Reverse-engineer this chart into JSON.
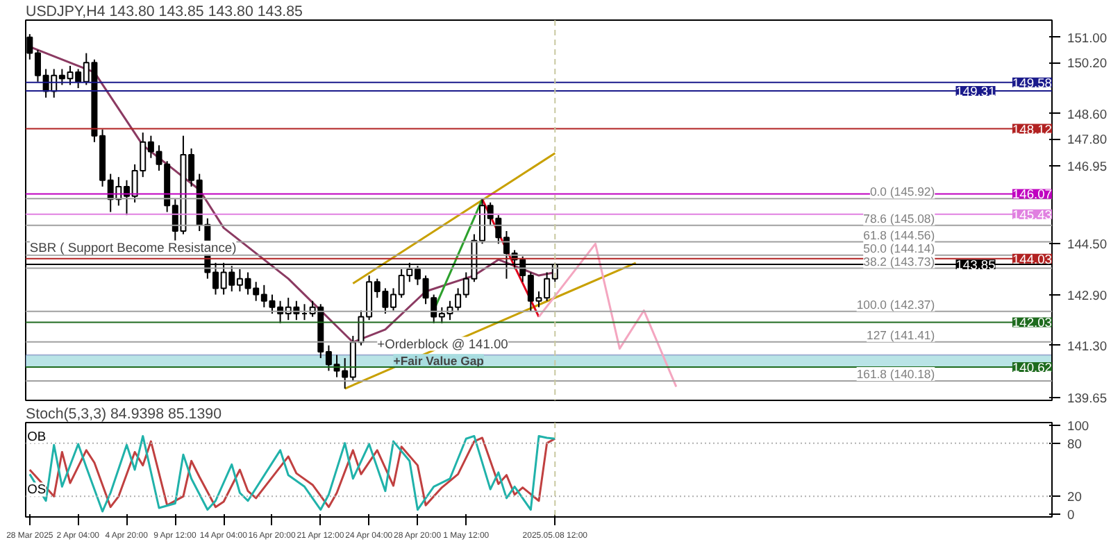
{
  "chart_data": [
    {
      "type": "candlestick",
      "title": "USDJPY,H4  143.80 143.85 143.80 143.85",
      "tick_labels": "y",
      "categories": [
        "28 Mar 2025",
        null,
        null,
        null,
        null,
        null,
        "2 Apr 04:00",
        null,
        null,
        null,
        null,
        null,
        "4 Apr 20:00",
        null,
        null,
        null,
        null,
        null,
        "9 Apr 12:00",
        null,
        null,
        null,
        null,
        null,
        "14 Apr 04:00",
        null,
        null,
        null,
        null,
        null,
        "16 Apr 20:00",
        null,
        null,
        null,
        null,
        null,
        "21 Apr 12:00",
        null,
        null,
        null,
        null,
        null,
        "24 Apr 04:00",
        null,
        null,
        null,
        null,
        null,
        "28 Apr 20:00",
        null,
        null,
        null,
        null,
        null,
        "1 May 12:00",
        null,
        null,
        null,
        null,
        null,
        null,
        null,
        null,
        null,
        null,
        "2025.05.08 12:00",
        null,
        null,
        null,
        null,
        null,
        null,
        null,
        null,
        null,
        null,
        null,
        null,
        null,
        null,
        null,
        null,
        null,
        null,
        null,
        null,
        null,
        null,
        null,
        null,
        null,
        null,
        null,
        null,
        null,
        null,
        null,
        null,
        null,
        null,
        null,
        null,
        null,
        null,
        null,
        null,
        null,
        null,
        null,
        null,
        null,
        null,
        null,
        null,
        null,
        null,
        null,
        null,
        null,
        null,
        null,
        null,
        null,
        null,
        null,
        null,
        null
      ],
      "ohlc": [
        [
          151.0,
          151.1,
          150.3,
          150.5
        ],
        [
          150.5,
          150.6,
          149.6,
          149.8
        ],
        [
          149.8,
          150.0,
          149.1,
          149.3
        ],
        [
          149.3,
          150.0,
          149.1,
          149.8
        ],
        [
          149.8,
          150.0,
          149.5,
          149.7
        ],
        [
          149.7,
          150.1,
          149.5,
          149.9
        ],
        [
          149.9,
          150.0,
          149.4,
          149.6
        ],
        [
          149.6,
          150.5,
          149.5,
          150.2
        ],
        [
          150.2,
          150.3,
          147.7,
          147.9
        ],
        [
          147.9,
          148.1,
          146.3,
          146.5
        ],
        [
          146.5,
          146.7,
          145.5,
          145.9
        ],
        [
          145.9,
          146.6,
          145.7,
          146.3
        ],
        [
          146.3,
          146.5,
          145.4,
          146.0
        ],
        [
          146.0,
          147.0,
          145.8,
          146.8
        ],
        [
          146.8,
          148.0,
          146.6,
          147.7
        ],
        [
          147.7,
          147.9,
          147.2,
          147.4
        ],
        [
          147.4,
          147.6,
          146.8,
          147.0
        ],
        [
          147.0,
          147.1,
          145.5,
          145.7
        ],
        [
          145.7,
          145.9,
          144.6,
          144.9
        ],
        [
          144.9,
          147.9,
          144.8,
          147.3
        ],
        [
          147.3,
          147.5,
          146.3,
          146.5
        ],
        [
          146.5,
          146.7,
          144.9,
          145.1
        ],
        [
          145.1,
          145.3,
          143.4,
          143.6
        ],
        [
          143.6,
          143.9,
          142.9,
          143.1
        ],
        [
          143.1,
          143.9,
          142.9,
          143.6
        ],
        [
          143.6,
          143.8,
          143.0,
          143.2
        ],
        [
          143.2,
          143.7,
          143.0,
          143.4
        ],
        [
          143.4,
          143.6,
          142.9,
          143.1
        ],
        [
          143.1,
          143.3,
          142.7,
          142.9
        ],
        [
          142.9,
          143.2,
          142.5,
          142.7
        ],
        [
          142.7,
          142.9,
          142.3,
          142.5
        ],
        [
          142.5,
          142.7,
          142.0,
          142.3
        ],
        [
          142.3,
          142.8,
          142.1,
          142.5
        ],
        [
          142.5,
          142.7,
          142.1,
          142.3
        ],
        [
          142.3,
          142.6,
          142.1,
          142.3
        ],
        [
          142.3,
          142.7,
          142.2,
          142.5
        ],
        [
          142.5,
          142.6,
          140.9,
          141.1
        ],
        [
          141.1,
          141.3,
          140.5,
          140.7
        ],
        [
          140.7,
          141.0,
          140.3,
          140.5
        ],
        [
          140.5,
          140.9,
          139.94,
          140.3
        ],
        [
          140.3,
          141.6,
          140.2,
          141.4
        ],
        [
          141.4,
          142.4,
          141.3,
          142.2
        ],
        [
          142.2,
          143.5,
          142.1,
          143.3
        ],
        [
          143.3,
          143.4,
          142.8,
          143.0
        ],
        [
          143.0,
          143.1,
          142.3,
          142.5
        ],
        [
          142.5,
          143.1,
          142.4,
          142.9
        ],
        [
          142.9,
          143.7,
          142.8,
          143.5
        ],
        [
          143.5,
          143.9,
          143.3,
          143.7
        ],
        [
          143.7,
          143.8,
          143.2,
          143.4
        ],
        [
          143.4,
          143.5,
          142.6,
          142.8
        ],
        [
          142.8,
          142.9,
          142.0,
          142.2
        ],
        [
          142.2,
          142.5,
          142.0,
          142.3
        ],
        [
          142.3,
          142.7,
          142.1,
          142.5
        ],
        [
          142.5,
          143.1,
          142.4,
          142.9
        ],
        [
          142.9,
          143.6,
          142.8,
          143.4
        ],
        [
          143.4,
          144.8,
          143.3,
          144.6
        ],
        [
          144.6,
          145.92,
          144.5,
          145.7
        ],
        [
          145.7,
          145.8,
          145.1,
          145.3
        ],
        [
          145.3,
          145.4,
          144.5,
          144.7
        ],
        [
          144.7,
          144.9,
          143.4,
          144.2
        ],
        [
          144.2,
          144.3,
          143.7,
          144.0
        ],
        [
          144.0,
          144.1,
          143.3,
          143.5
        ],
        [
          143.5,
          143.6,
          142.37,
          142.7
        ],
        [
          142.7,
          143.0,
          142.5,
          142.8
        ],
        [
          142.8,
          143.6,
          142.7,
          143.4
        ],
        [
          143.4,
          143.9,
          143.3,
          143.85
        ],
        null,
        null,
        null,
        null,
        null,
        null,
        null,
        null,
        null,
        null,
        null,
        null,
        null,
        null,
        null,
        null,
        null,
        null,
        null,
        null,
        null,
        null,
        null,
        null,
        null,
        null,
        null,
        null,
        null,
        null,
        null,
        null,
        null,
        null,
        null,
        null,
        null,
        null,
        null,
        null,
        null,
        null,
        null,
        null,
        null,
        null,
        null,
        null,
        null,
        null,
        null,
        null,
        null,
        null,
        null,
        null,
        null,
        null,
        null,
        null,
        null
      ],
      "series": [
        {
          "type": "line",
          "color": "#8b3a62",
          "values": [
            150.7,
            null,
            null,
            null,
            null,
            null,
            null,
            null,
            149.9,
            null,
            null,
            null,
            null,
            null,
            147.6,
            null,
            null,
            null,
            null,
            null,
            null,
            146.2,
            null,
            null,
            145.0,
            null,
            null,
            null,
            null,
            null,
            null,
            null,
            143.4,
            null,
            null,
            null,
            null,
            null,
            null,
            null,
            141.4,
            null,
            null,
            null,
            141.8,
            null,
            null,
            null,
            null,
            143.0,
            null,
            null,
            null,
            null,
            null,
            143.5,
            null,
            null,
            144.0,
            null,
            null,
            null,
            null,
            143.5,
            null,
            143.6,
            null,
            null,
            null,
            null,
            null,
            null,
            null,
            null,
            null,
            null,
            null,
            null,
            null,
            null,
            null,
            null,
            null,
            null,
            null,
            null,
            null,
            null,
            null,
            null,
            null,
            null,
            null,
            null,
            null,
            null,
            null,
            null,
            null,
            null,
            null,
            null,
            null,
            null,
            null,
            null,
            null,
            null,
            null,
            null,
            null,
            null,
            null,
            null,
            null,
            null,
            null,
            null,
            null,
            null,
            null,
            null,
            null,
            null,
            null,
            null,
            null
          ]
        },
        {
          "type": "line",
          "color": "#c8a000",
          "values": [
            null,
            null,
            null,
            null,
            null,
            null,
            null,
            null,
            null,
            null,
            null,
            null,
            null,
            null,
            null,
            null,
            null,
            null,
            null,
            null,
            null,
            null,
            null,
            null,
            null,
            null,
            null,
            null,
            null,
            null,
            null,
            null,
            null,
            null,
            null,
            null,
            null,
            null,
            null,
            139.94,
            null,
            null,
            null,
            null,
            null,
            null,
            null,
            null,
            null,
            null,
            null,
            null,
            null,
            null,
            null,
            null,
            null,
            null,
            null,
            null,
            null,
            null,
            null,
            null,
            null,
            null,
            null,
            null,
            null,
            null,
            null,
            null,
            null,
            null,
            null,
            143.9,
            null,
            null,
            null,
            null,
            null,
            null,
            null,
            null,
            null,
            null,
            null,
            null,
            null,
            null,
            null,
            null,
            null,
            null,
            null,
            null,
            null,
            null,
            null,
            null,
            null,
            null,
            null,
            null,
            null,
            null,
            null,
            null,
            null,
            null,
            null,
            null,
            null,
            null,
            null,
            null,
            null,
            null,
            null,
            null,
            null,
            null,
            null,
            null,
            null,
            null,
            null
          ]
        },
        {
          "type": "line",
          "color": "#c8a000",
          "values": [
            null,
            null,
            null,
            null,
            null,
            null,
            null,
            null,
            null,
            null,
            null,
            null,
            null,
            null,
            null,
            null,
            null,
            null,
            null,
            null,
            null,
            null,
            null,
            null,
            null,
            null,
            null,
            null,
            null,
            null,
            null,
            null,
            null,
            null,
            null,
            null,
            null,
            null,
            null,
            null,
            143.25,
            null,
            null,
            null,
            null,
            null,
            null,
            null,
            null,
            null,
            null,
            null,
            null,
            null,
            null,
            null,
            null,
            null,
            null,
            null,
            null,
            null,
            null,
            null,
            null,
            147.35,
            null,
            null,
            null,
            null,
            null,
            null,
            null,
            null,
            null,
            null,
            null,
            null,
            null,
            null,
            null,
            null,
            null,
            null,
            null,
            null,
            null,
            null,
            null,
            null,
            null,
            null,
            null,
            null,
            null,
            null,
            null,
            null,
            null,
            null,
            null,
            null,
            null,
            null,
            null,
            null,
            null,
            null,
            null,
            null,
            null,
            null,
            null,
            null,
            null,
            null,
            null,
            null,
            null,
            null,
            null,
            null,
            null,
            null,
            null,
            null,
            null
          ]
        },
        {
          "type": "line",
          "color": "#2ca02c",
          "values": [
            null,
            null,
            null,
            null,
            null,
            null,
            null,
            null,
            null,
            null,
            null,
            null,
            null,
            null,
            null,
            null,
            null,
            null,
            null,
            null,
            null,
            null,
            null,
            null,
            null,
            null,
            null,
            null,
            null,
            null,
            null,
            null,
            null,
            null,
            null,
            null,
            null,
            null,
            null,
            null,
            null,
            null,
            null,
            null,
            null,
            null,
            null,
            null,
            null,
            null,
            142.4,
            null,
            null,
            null,
            null,
            null,
            145.9,
            null,
            null,
            null,
            null,
            null,
            null,
            null,
            null,
            null,
            null,
            null,
            null,
            null,
            null,
            null,
            null,
            null,
            null,
            null,
            null,
            null,
            null,
            null,
            null,
            null,
            null,
            null,
            null,
            null,
            null,
            null,
            null,
            null,
            null,
            null,
            null,
            null,
            null,
            null,
            null,
            null,
            null,
            null,
            null,
            null,
            null,
            null,
            null,
            null,
            null,
            null,
            null,
            null,
            null,
            null,
            null,
            null,
            null,
            null,
            null,
            null,
            null,
            null,
            null,
            null,
            null,
            null,
            null,
            null,
            null
          ]
        },
        {
          "type": "line",
          "color": "#e0001b",
          "values": [
            null,
            null,
            null,
            null,
            null,
            null,
            null,
            null,
            null,
            null,
            null,
            null,
            null,
            null,
            null,
            null,
            null,
            null,
            null,
            null,
            null,
            null,
            null,
            null,
            null,
            null,
            null,
            null,
            null,
            null,
            null,
            null,
            null,
            null,
            null,
            null,
            null,
            null,
            null,
            null,
            null,
            null,
            null,
            null,
            null,
            null,
            null,
            null,
            null,
            null,
            null,
            null,
            null,
            null,
            null,
            null,
            145.9,
            null,
            null,
            null,
            null,
            null,
            null,
            142.2,
            null,
            null,
            null,
            null,
            null,
            null,
            null,
            null,
            null,
            null,
            null,
            null,
            null,
            null,
            null,
            null,
            null,
            null,
            null,
            null,
            null,
            null,
            null,
            null,
            null,
            null,
            null,
            null,
            null,
            null,
            null,
            null,
            null,
            null,
            null,
            null,
            null,
            null,
            null,
            null,
            null,
            null,
            null,
            null,
            null,
            null,
            null,
            null,
            null,
            null,
            null,
            null,
            null,
            null,
            null,
            null,
            null,
            null,
            null,
            null,
            null,
            null,
            null
          ]
        },
        {
          "type": "line",
          "color": "#f4a6c0",
          "values": [
            null,
            null,
            null,
            null,
            null,
            null,
            null,
            null,
            null,
            null,
            null,
            null,
            null,
            null,
            null,
            null,
            null,
            null,
            null,
            null,
            null,
            null,
            null,
            null,
            null,
            null,
            null,
            null,
            null,
            null,
            null,
            null,
            null,
            null,
            null,
            null,
            null,
            null,
            null,
            null,
            null,
            null,
            null,
            null,
            null,
            null,
            null,
            null,
            null,
            null,
            null,
            null,
            null,
            null,
            null,
            null,
            null,
            null,
            null,
            null,
            null,
            null,
            null,
            142.2,
            null,
            null,
            null,
            null,
            null,
            null,
            144.5,
            null,
            null,
            141.2,
            null,
            null,
            142.4,
            null,
            null,
            null,
            140.0,
            null,
            null,
            null,
            null,
            null,
            null,
            null,
            null,
            null,
            null,
            null,
            null,
            null,
            null,
            null,
            null,
            null,
            null,
            null,
            null,
            null,
            null,
            null,
            null,
            null,
            null,
            null,
            null,
            null,
            null,
            null,
            null,
            null,
            null,
            null,
            null,
            null,
            null,
            null,
            null,
            null,
            null,
            null,
            null,
            null,
            null
          ]
        }
      ],
      "ylim": [
        139.57,
        151.54
      ],
      "yticks": [
        {
          "value": 139.65,
          "label": "139.65"
        },
        {
          "value": 141.3,
          "label": "141.30"
        },
        {
          "value": 142.9,
          "label": "142.90"
        },
        {
          "value": 144.5,
          "label": "144.50"
        },
        {
          "value": 146.95,
          "label": "146.95"
        },
        {
          "value": 147.8,
          "label": "147.80"
        },
        {
          "value": 148.6,
          "label": "148.60"
        },
        {
          "value": 150.2,
          "label": "150.20"
        },
        {
          "value": 151.0,
          "label": "151.00"
        }
      ],
      "ref_lines": [
        {
          "axis": "y",
          "value": 149.58,
          "label": "149.58",
          "color": "#1a1a8b"
        },
        {
          "axis": "y",
          "value": 149.31,
          "label": "149.31",
          "color": "#1a1a8b"
        },
        {
          "axis": "y",
          "value": 148.12,
          "label": "148.12",
          "color": "#b22222"
        },
        {
          "axis": "y",
          "value": 146.07,
          "label": "146.07",
          "color": "#c000c0"
        },
        {
          "axis": "y",
          "value": 145.43,
          "label": "145.43",
          "color": "#e080e0"
        },
        {
          "axis": "y",
          "value": 144.03,
          "label": "144.03",
          "color": "#b22222"
        },
        {
          "axis": "y",
          "value": 143.85,
          "label": "143.85",
          "color": "#000000"
        },
        {
          "axis": "y",
          "value": 142.03,
          "label": "142.03",
          "color": "#1e6b1e"
        },
        {
          "axis": "y",
          "value": 140.62,
          "label": "140.62",
          "color": "#1e6b1e"
        },
        {
          "axis": "y",
          "value": 145.92,
          "label": "0.0 (145.92)",
          "color": "#a0a0a0"
        },
        {
          "axis": "y",
          "value": 145.08,
          "label": "78.6 (145.08)",
          "color": "#a0a0a0"
        },
        {
          "axis": "y",
          "value": 144.56,
          "label": "61.8 (144.56)",
          "color": "#a0a0a0"
        },
        {
          "axis": "y",
          "value": 144.14,
          "label": "50.0 (144.14)",
          "color": "#a0a0a0"
        },
        {
          "axis": "y",
          "value": 143.73,
          "label": "38.2 (143.73)",
          "color": "#a0a0a0"
        },
        {
          "axis": "y",
          "value": 142.37,
          "label": "100.0 (142.37)",
          "color": "#a0a0a0"
        },
        {
          "axis": "y",
          "value": 141.41,
          "label": "127 (141.41)",
          "color": "#a0a0a0"
        },
        {
          "axis": "y",
          "value": 140.18,
          "label": "161.8 (140.18)",
          "color": "#a0a0a0"
        },
        {
          "axis": "x",
          "value": "2025.05.08 12:00",
          "color": "#c8c8a0",
          "line_style": "dashed"
        }
      ],
      "bands": [
        {
          "axis": "y",
          "from": 140.62,
          "to": 141.0,
          "label": "+Fair Value Gap",
          "color": "#a8dde0"
        }
      ],
      "annotations": [
        {
          "text": "SBR ( Support Become Resistance)",
          "x": "28 Mar 2025",
          "y": 144.03
        },
        {
          "text": "+Orderblock @ 141.00",
          "y": 141.0
        }
      ]
    },
    {
      "type": "line",
      "title": "Stoch(5,3,3) 84.9398 85.1390",
      "categories": [
        "28 Mar 2025",
        null,
        null,
        null,
        null,
        null,
        "2 Apr 04:00",
        null,
        null,
        null,
        null,
        null,
        "4 Apr 20:00",
        null,
        null,
        null,
        null,
        null,
        "9 Apr 12:00",
        null,
        null,
        null,
        null,
        null,
        "14 Apr 04:00",
        null,
        null,
        null,
        null,
        null,
        "16 Apr 20:00",
        null,
        null,
        null,
        null,
        null,
        "21 Apr 12:00",
        null,
        null,
        null,
        null,
        null,
        "24 Apr 04:00",
        null,
        null,
        null,
        null,
        null,
        "28 Apr 20:00",
        null,
        null,
        null,
        null,
        null,
        "1 May 12:00",
        null,
        null,
        null,
        null,
        null,
        null,
        null,
        null,
        null,
        null,
        "2025.05.08 12:00",
        null,
        null,
        null,
        null,
        null,
        null,
        null,
        null,
        null,
        null,
        null,
        null,
        null,
        null,
        null,
        null,
        null,
        null,
        null,
        null,
        null,
        null,
        null,
        null,
        null,
        null,
        null,
        null,
        null,
        null,
        null,
        null,
        null,
        null,
        null,
        null,
        null,
        null,
        null,
        null,
        null,
        null,
        null,
        null,
        null,
        null,
        null,
        null,
        null,
        null,
        null,
        null,
        null,
        null,
        null,
        null,
        null,
        null,
        null,
        null,
        null
      ],
      "series": [
        {
          "color": "#c04040",
          "values": [
            50,
            null,
            null,
            20,
            70,
            35,
            null,
            72,
            58,
            null,
            8,
            20,
            null,
            70,
            55,
            82,
            null,
            10,
            null,
            20,
            60,
            42,
            null,
            8,
            14,
            null,
            50,
            26,
            18,
            null,
            null,
            null,
            65,
            46,
            null,
            33,
            null,
            8,
            24,
            null,
            72,
            45,
            null,
            72,
            null,
            32,
            76,
            null,
            55,
            10,
            null,
            30,
            null,
            45,
            null,
            82,
            86,
            null,
            34,
            44,
            22,
            30,
            null,
            15,
            80,
            85,
            null,
            null,
            null,
            null,
            null,
            null,
            null,
            null,
            null,
            null,
            null,
            null,
            null,
            null,
            null,
            null,
            null,
            null,
            null,
            null,
            null,
            null,
            null,
            null,
            null,
            null,
            null,
            null,
            null,
            null,
            null,
            null,
            null,
            null,
            null,
            null,
            null,
            null,
            null,
            null,
            null,
            null,
            null,
            null,
            null,
            null,
            null,
            null,
            null,
            null,
            null,
            null,
            null,
            null,
            null,
            null,
            null,
            null,
            null,
            null,
            null
          ]
        },
        {
          "color": "#20b2aa",
          "values": [
            45,
            null,
            15,
            78,
            31,
            null,
            79,
            53,
            null,
            3,
            24,
            null,
            78,
            50,
            88,
            null,
            7,
            null,
            12,
            67,
            40,
            null,
            5,
            15,
            null,
            56,
            24,
            15,
            null,
            null,
            null,
            72,
            44,
            null,
            31,
            null,
            5,
            22,
            null,
            80,
            40,
            null,
            79,
            null,
            26,
            82,
            null,
            60,
            5,
            null,
            31,
            null,
            40,
            null,
            85,
            88,
            null,
            28,
            47,
            18,
            31,
            null,
            5,
            88,
            86,
            85,
            null,
            null,
            null,
            null,
            null,
            null,
            null,
            null,
            null,
            null,
            null,
            null,
            null,
            null,
            null,
            null,
            null,
            null,
            null,
            null,
            null,
            null,
            null,
            null,
            null,
            null,
            null,
            null,
            null,
            null,
            null,
            null,
            null,
            null,
            null,
            null,
            null,
            null,
            null,
            null,
            null,
            null,
            null,
            null,
            null,
            null,
            null,
            null,
            null,
            null,
            null,
            null,
            null,
            null,
            null,
            null,
            null,
            null,
            null,
            null,
            null
          ]
        }
      ],
      "ylim": [
        -3.2,
        103.2
      ],
      "yticks": [
        0,
        20,
        80,
        100
      ],
      "ref_lines": [
        {
          "axis": "y",
          "value": 80,
          "label": "OB",
          "color": "#b0b0b0",
          "line_style": "dotted"
        },
        {
          "axis": "y",
          "value": 20,
          "label": "OS",
          "color": "#b0b0b0",
          "line_style": "dotted"
        },
        {
          "axis": "x",
          "value": "2025.05.08 12:00",
          "color": "#c8c8a0",
          "line_style": "dashed"
        }
      ]
    }
  ]
}
